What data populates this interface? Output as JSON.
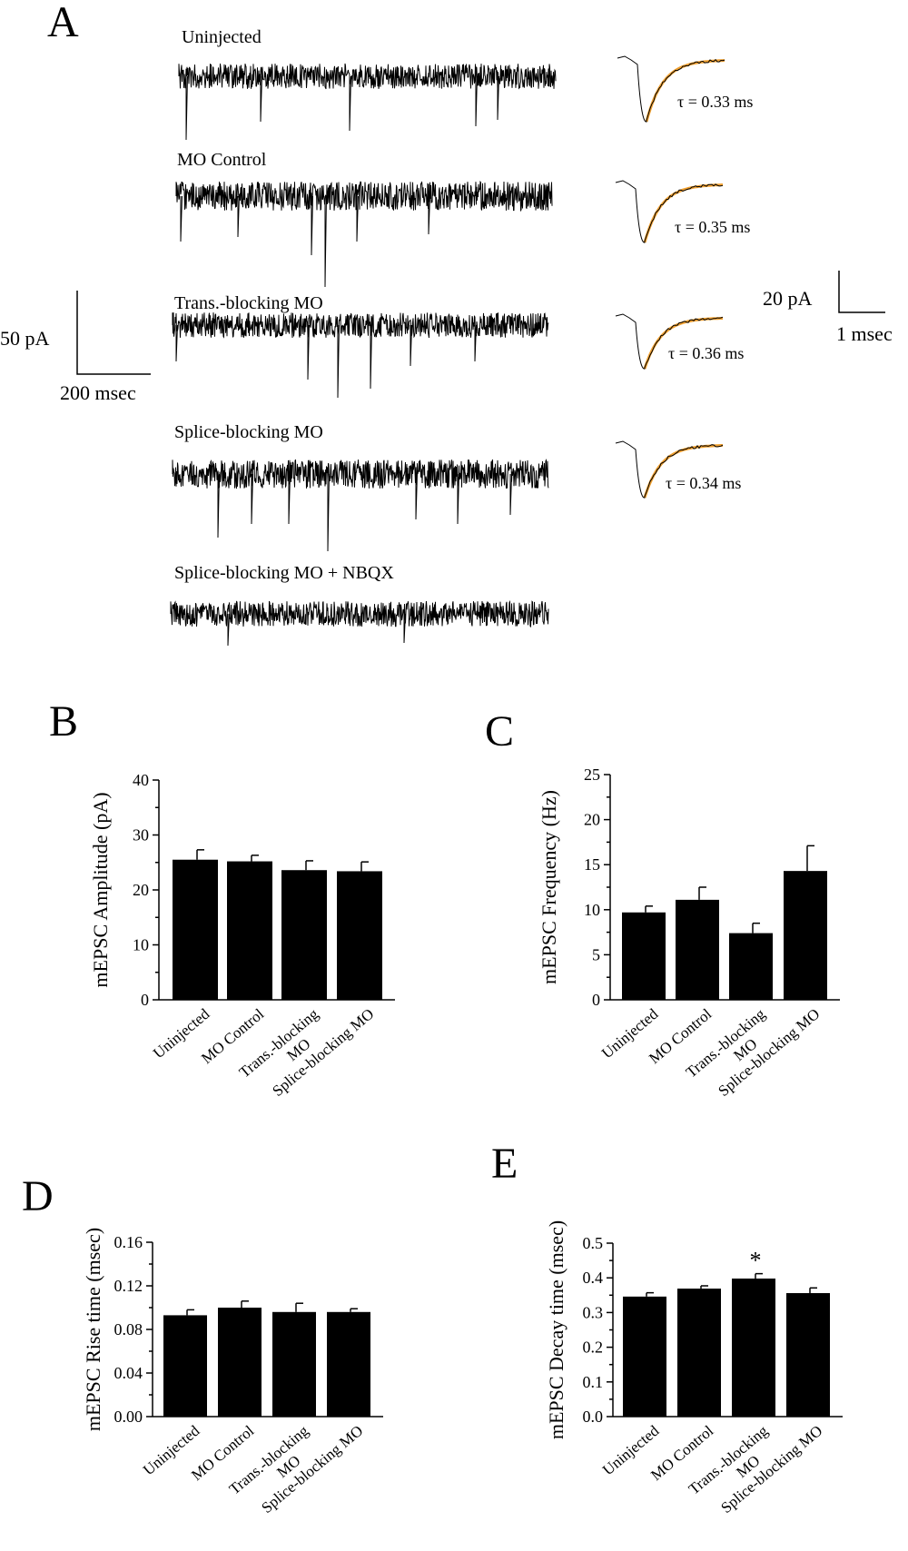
{
  "panel_a": {
    "letter": "A",
    "traces": [
      {
        "label": "Uninjected",
        "tau": "τ = 0.33 ms"
      },
      {
        "label": "MO Control",
        "tau": "τ = 0.35 ms"
      },
      {
        "label": "Trans.-blocking MO",
        "tau": "τ = 0.36 ms"
      },
      {
        "label": "Splice-blocking MO",
        "tau": "τ = 0.34 ms"
      },
      {
        "label": "Splice-blocking MO + NBQX",
        "tau": ""
      }
    ],
    "scale_left": {
      "y_label": "50 pA",
      "x_label": "200 msec"
    },
    "scale_right": {
      "y_label": "20 pA",
      "x_label": "1 msec"
    },
    "colors": {
      "trace": "#000000",
      "fit": "#f0a030"
    }
  },
  "chart_data": [
    {
      "panel": "B",
      "type": "bar",
      "title": "",
      "xlabel": "",
      "ylabel": "mEPSC Amplitude (pA)",
      "categories": [
        "Uninjected",
        "MO Control",
        "Trans.-blocking\nMO",
        "Splice-blocking MO"
      ],
      "values": [
        25.5,
        25.2,
        23.6,
        23.4
      ],
      "errors": [
        1.8,
        1.1,
        1.7,
        1.7
      ],
      "ylim": [
        0,
        40
      ],
      "yticks": [
        "0",
        "10",
        "20",
        "30",
        "40"
      ],
      "annotations": [],
      "grid": false
    },
    {
      "panel": "C",
      "type": "bar",
      "title": "",
      "xlabel": "",
      "ylabel": "mEPSC Frequency (Hz)",
      "categories": [
        "Uninjected",
        "MO Control",
        "Trans.-blocking\nMO",
        "Splice-blocking MO"
      ],
      "values": [
        9.7,
        11.1,
        7.4,
        14.3
      ],
      "errors": [
        0.7,
        1.4,
        1.1,
        2.8
      ],
      "ylim": [
        0,
        25
      ],
      "yticks": [
        "0",
        "5",
        "10",
        "15",
        "20",
        "25"
      ],
      "annotations": [],
      "grid": false
    },
    {
      "panel": "D",
      "type": "bar",
      "title": "",
      "xlabel": "",
      "ylabel": "mEPSC Rise time (msec)",
      "categories": [
        "Uninjected",
        "MO Control",
        "Trans.-blocking\nMO",
        "Splice-blocking MO"
      ],
      "values": [
        0.093,
        0.1,
        0.096,
        0.096
      ],
      "errors": [
        0.005,
        0.006,
        0.008,
        0.003
      ],
      "ylim": [
        0,
        0.16
      ],
      "yticks": [
        "0.00",
        "0.04",
        "0.08",
        "0.12",
        "0.16"
      ],
      "annotations": [],
      "grid": false
    },
    {
      "panel": "E",
      "type": "bar",
      "title": "",
      "xlabel": "",
      "ylabel": "mEPSC Decay time (msec)",
      "categories": [
        "Uninjected",
        "MO Control",
        "Trans.-blocking\nMO",
        "Splice-blocking MO"
      ],
      "values": [
        0.346,
        0.369,
        0.398,
        0.356
      ],
      "errors": [
        0.011,
        0.008,
        0.014,
        0.015
      ],
      "ylim": [
        0,
        0.5
      ],
      "yticks": [
        "0.0",
        "0.1",
        "0.2",
        "0.3",
        "0.4",
        "0.5"
      ],
      "annotations": [
        {
          "category_index": 2,
          "text": "*"
        }
      ],
      "grid": false
    }
  ]
}
